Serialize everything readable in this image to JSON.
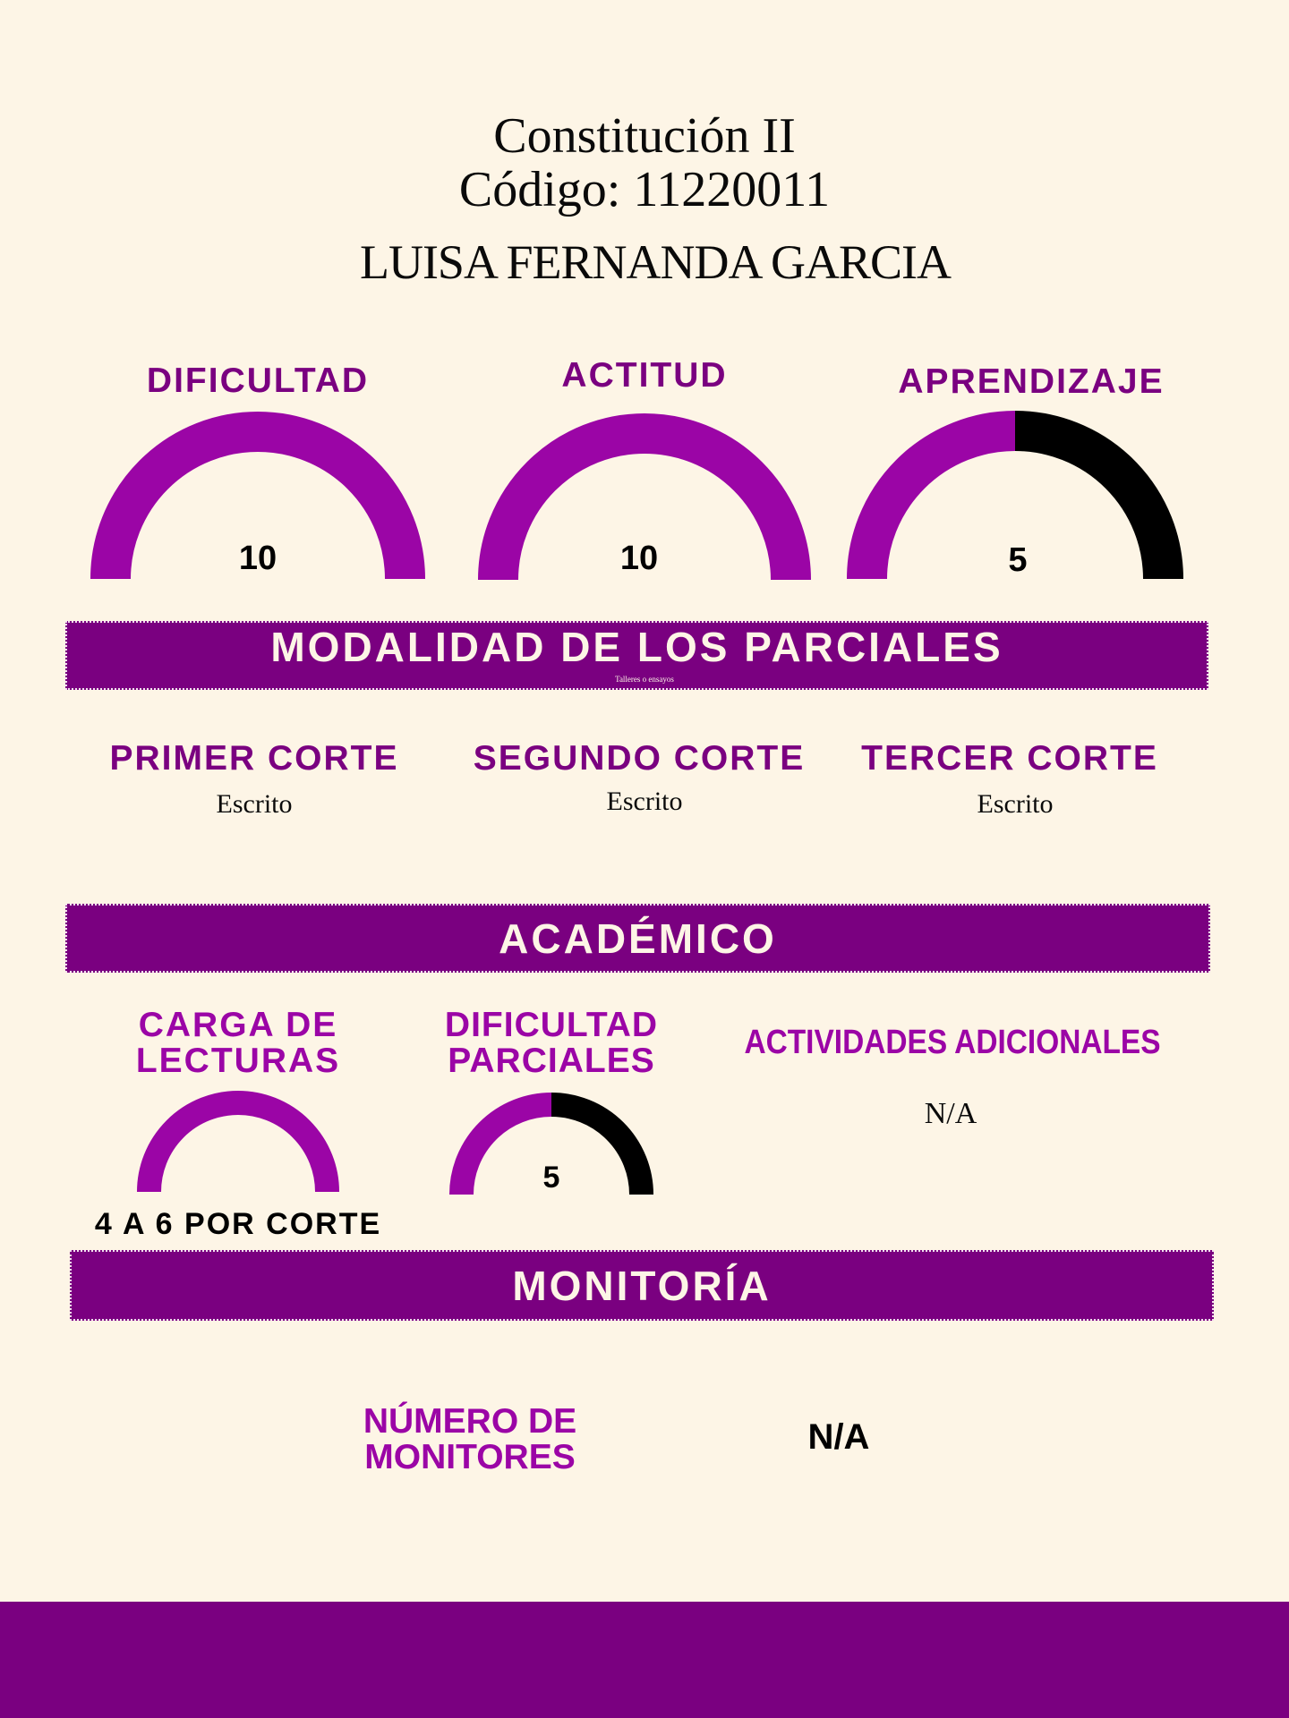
{
  "header": {
    "course": "Constitución II",
    "code": "Código: 11220011",
    "professor": "LUISA FERNANDA GARCIA"
  },
  "colors": {
    "primary": "#7a0080",
    "accent": "#9b05a6",
    "remaining": "#000000",
    "background": "#fdf5e6"
  },
  "ratings": [
    {
      "label": "DIFICULTAD",
      "value": "10",
      "score": 10,
      "max": 10
    },
    {
      "label": "ACTITUD",
      "value": "10",
      "score": 10,
      "max": 10
    },
    {
      "label": "APRENDIZAJE",
      "value": "5",
      "score": 5,
      "max": 10
    }
  ],
  "modalidad": {
    "title": "MODALIDAD DE LOS PARCIALES",
    "note": "Talleres o ensayos",
    "cortes": [
      {
        "label": "PRIMER CORTE",
        "value": "Escrito"
      },
      {
        "label": "SEGUNDO CORTE",
        "value": "Escrito"
      },
      {
        "label": "TERCER CORTE",
        "value": "Escrito"
      }
    ]
  },
  "academico": {
    "title": "ACADÉMICO",
    "carga": {
      "label_1": "CARGA DE",
      "label_2": "LECTURAS",
      "value": "4 A 6 POR CORTE",
      "fill": 1
    },
    "dificultad_parciales": {
      "label_1": "DIFICULTAD",
      "label_2": "PARCIALES",
      "value": "5",
      "score": 5,
      "max": 10
    },
    "actividades": {
      "label": "ACTIVIDADES ADICIONALES",
      "value": "N/A"
    }
  },
  "monitoria": {
    "title": "MONITORÍA",
    "label_1": "NÚMERO DE",
    "label_2": "MONITORES",
    "value": "N/A"
  }
}
